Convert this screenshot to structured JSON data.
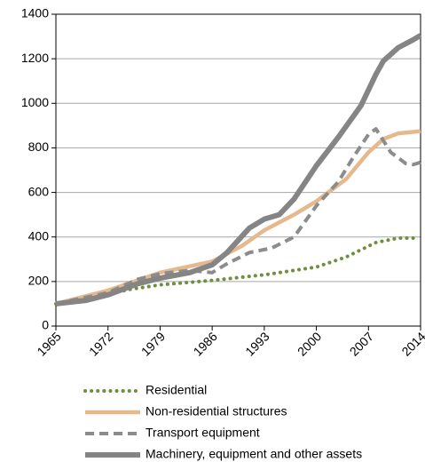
{
  "chart_data": {
    "type": "line",
    "xlim": [
      1965,
      2014
    ],
    "xticks": [
      1965,
      1972,
      1979,
      1986,
      1993,
      2000,
      2007,
      2014
    ],
    "ylim": [
      0,
      1400
    ],
    "yticks": [
      0,
      200,
      400,
      600,
      800,
      1000,
      1200,
      1400
    ],
    "grid": true,
    "legend": "bottom",
    "series": [
      {
        "name": "Residential",
        "color": "#6e8f3c",
        "style": "dotted",
        "x": [
          1965,
          1970,
          1975,
          1979,
          1986,
          1993,
          2000,
          2004,
          2008,
          2011,
          2013
        ],
        "values": [
          100,
          130,
          165,
          185,
          205,
          230,
          265,
          310,
          375,
          395,
          395
        ]
      },
      {
        "name": "Non-residential structures",
        "color": "#e5b98c",
        "style": "solid",
        "x": [
          1965,
          1972,
          1979,
          1986,
          1990,
          1993,
          1997,
          2000,
          2004,
          2007,
          2009,
          2011,
          2014
        ],
        "values": [
          100,
          160,
          240,
          290,
          360,
          430,
          500,
          560,
          660,
          780,
          840,
          865,
          875
        ]
      },
      {
        "name": "Transport equipment",
        "color": "#8c8c8c",
        "style": "dashed",
        "x": [
          1965,
          1972,
          1976,
          1979,
          1983,
          1986,
          1988,
          1991,
          1994,
          1997,
          2000,
          2003,
          2005,
          2007,
          2008,
          2010,
          2012,
          2013,
          2014
        ],
        "values": [
          100,
          150,
          210,
          235,
          250,
          240,
          280,
          330,
          350,
          400,
          540,
          650,
          760,
          860,
          885,
          780,
          730,
          725,
          735
        ]
      },
      {
        "name": "Machinery, equipment and other assets",
        "color": "#858585",
        "style": "thick",
        "x": [
          1965,
          1969,
          1972,
          1976,
          1979,
          1983,
          1986,
          1988,
          1991,
          1993,
          1995,
          1997,
          2000,
          2003,
          2006,
          2008,
          2009,
          2011,
          2013,
          2014
        ],
        "values": [
          100,
          115,
          140,
          190,
          215,
          240,
          275,
          330,
          440,
          480,
          500,
          570,
          720,
          850,
          990,
          1130,
          1190,
          1250,
          1285,
          1305
        ]
      }
    ]
  }
}
